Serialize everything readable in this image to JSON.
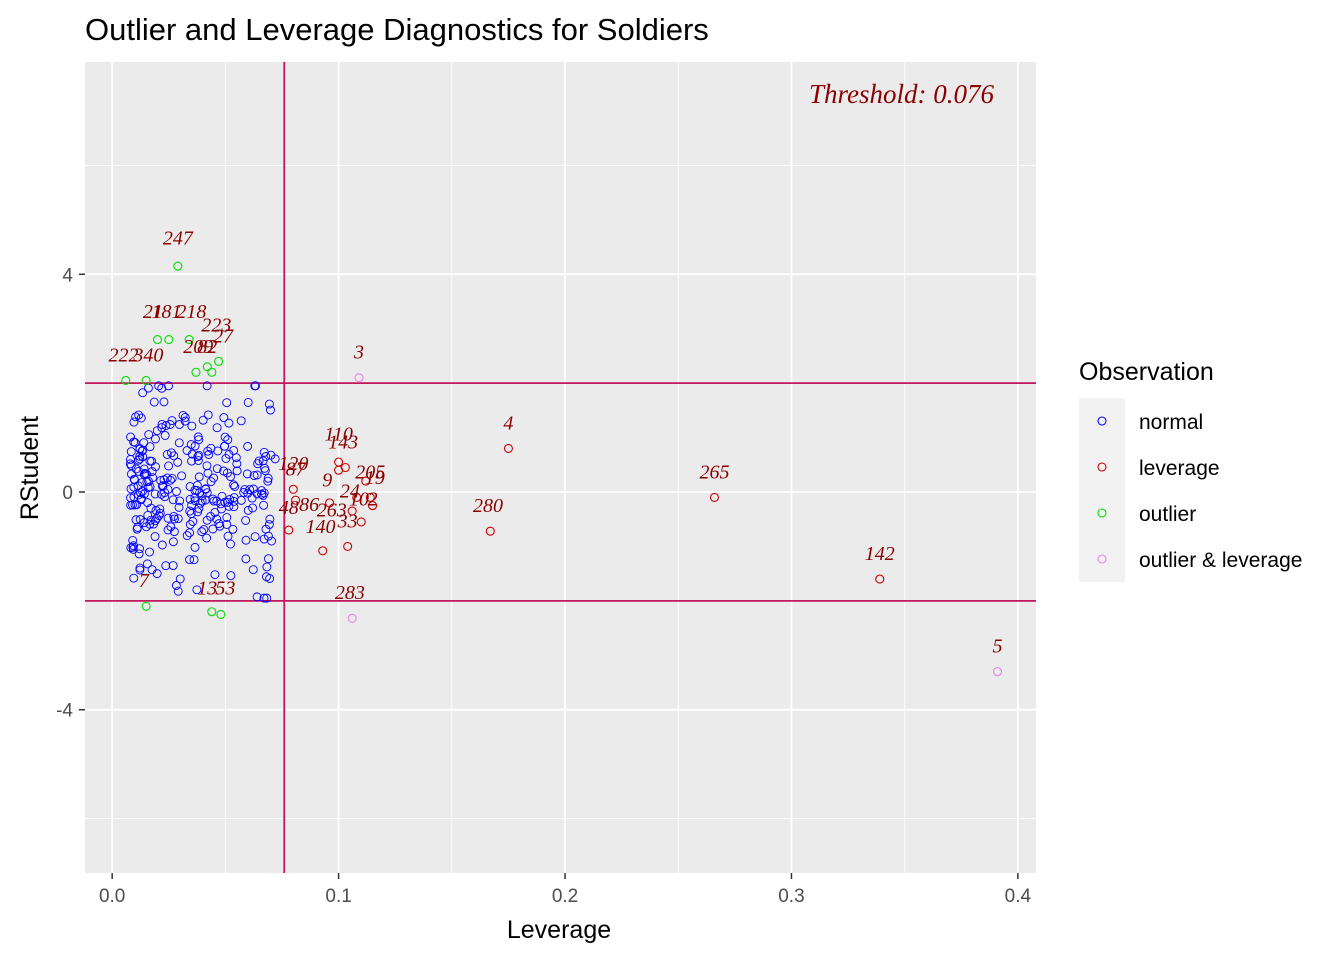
{
  "chart_data": {
    "type": "scatter",
    "title": "Outlier and Leverage Diagnostics for Soldiers",
    "xlabel": "Leverage",
    "ylabel": "RStudent",
    "xlim": [
      -0.012,
      0.408
    ],
    "ylim": [
      -7.0,
      7.9
    ],
    "x_ticks": [
      0.0,
      0.1,
      0.2,
      0.3,
      0.4
    ],
    "x_tick_labels": [
      "0.0",
      "0.1",
      "0.2",
      "0.3",
      "0.4"
    ],
    "y_ticks": [
      -4,
      0,
      4
    ],
    "y_tick_labels": [
      "-4",
      "0",
      "4"
    ],
    "x_minor": [
      0.05,
      0.15,
      0.25,
      0.35
    ],
    "y_minor": [
      -6,
      -2,
      2,
      6
    ],
    "grid": true,
    "threshold_text": "Threshold: 0.076",
    "threshold_leverage": 0.076,
    "rstudent_bounds": [
      -2,
      2
    ],
    "legend": {
      "title": "Observation",
      "position": "right",
      "entries": [
        {
          "label": "normal",
          "color": "#0000ff"
        },
        {
          "label": "leverage",
          "color": "#cc0000"
        },
        {
          "label": "outlier",
          "color": "#00dd00"
        },
        {
          "label": "outlier & leverage",
          "color": "#ee82ee"
        }
      ]
    },
    "label_color": "#8b0000",
    "line_color": "#c2185b",
    "panel_color": "#ebebeb",
    "series": [
      {
        "name": "leverage",
        "points": [
          [
            0.175,
            0.8,
            "4"
          ],
          [
            0.266,
            -0.1,
            "265"
          ],
          [
            0.167,
            -0.72,
            "280"
          ],
          [
            0.339,
            -1.6,
            "142"
          ],
          [
            0.08,
            0.05,
            "120"
          ],
          [
            0.078,
            -0.7,
            "48"
          ],
          [
            0.081,
            -0.15,
            "87"
          ],
          [
            0.093,
            -1.08,
            "140"
          ],
          [
            0.096,
            -0.2,
            "86"
          ],
          [
            0.1,
            0.55,
            "110"
          ],
          [
            0.1,
            0.4,
            "9"
          ],
          [
            0.103,
            0.45,
            "143"
          ],
          [
            0.104,
            -1.0,
            "33"
          ],
          [
            0.106,
            -0.35,
            "263"
          ],
          [
            0.108,
            -0.1,
            "24"
          ],
          [
            0.11,
            -0.55,
            "10"
          ],
          [
            0.112,
            0.2,
            "205"
          ],
          [
            0.114,
            -0.1,
            "19"
          ],
          [
            0.115,
            -0.25,
            "2"
          ]
        ]
      },
      {
        "name": "outlier",
        "points": [
          [
            0.029,
            4.15,
            "247"
          ],
          [
            0.02,
            2.8,
            "21"
          ],
          [
            0.025,
            2.8,
            "181"
          ],
          [
            0.034,
            2.8,
            "218"
          ],
          [
            0.037,
            2.2,
            "223"
          ],
          [
            0.042,
            2.3,
            "209"
          ],
          [
            0.044,
            2.2,
            "82"
          ],
          [
            0.047,
            2.4,
            "27"
          ],
          [
            0.006,
            2.05,
            "222"
          ],
          [
            0.015,
            2.05,
            "340"
          ],
          [
            0.015,
            -2.1,
            "7"
          ],
          [
            0.044,
            -2.2,
            "13"
          ],
          [
            0.048,
            -2.25,
            "53"
          ]
        ]
      },
      {
        "name": "outlier & leverage",
        "points": [
          [
            0.109,
            2.1,
            "3"
          ],
          [
            0.106,
            -2.32,
            "283"
          ],
          [
            0.391,
            -3.3,
            "5"
          ]
        ]
      }
    ],
    "labels": [
      {
        "text": "247",
        "x": 0.029,
        "y": 4.55
      },
      {
        "text": "21",
        "x": 0.018,
        "y": 3.2
      },
      {
        "text": "181",
        "x": 0.024,
        "y": 3.2
      },
      {
        "text": "218",
        "x": 0.035,
        "y": 3.2
      },
      {
        "text": "223",
        "x": 0.046,
        "y": 2.95
      },
      {
        "text": "209",
        "x": 0.038,
        "y": 2.55
      },
      {
        "text": "82",
        "x": 0.042,
        "y": 2.55
      },
      {
        "text": "27",
        "x": 0.049,
        "y": 2.75
      },
      {
        "text": "222",
        "x": 0.005,
        "y": 2.4
      },
      {
        "text": "340",
        "x": 0.016,
        "y": 2.4
      },
      {
        "text": "3",
        "x": 0.109,
        "y": 2.45
      },
      {
        "text": "4",
        "x": 0.175,
        "y": 1.15
      },
      {
        "text": "110",
        "x": 0.1,
        "y": 0.95
      },
      {
        "text": "143",
        "x": 0.102,
        "y": 0.8
      },
      {
        "text": "120",
        "x": 0.08,
        "y": 0.4
      },
      {
        "text": "87",
        "x": 0.081,
        "y": 0.3
      },
      {
        "text": "9",
        "x": 0.095,
        "y": 0.1
      },
      {
        "text": "205",
        "x": 0.114,
        "y": 0.25
      },
      {
        "text": "19",
        "x": 0.116,
        "y": 0.15
      },
      {
        "text": "24",
        "x": 0.105,
        "y": -0.1
      },
      {
        "text": "10",
        "x": 0.109,
        "y": -0.25
      },
      {
        "text": "2",
        "x": 0.115,
        "y": -0.25
      },
      {
        "text": "48",
        "x": 0.078,
        "y": -0.4
      },
      {
        "text": "86",
        "x": 0.087,
        "y": -0.35
      },
      {
        "text": "263",
        "x": 0.097,
        "y": -0.45
      },
      {
        "text": "140",
        "x": 0.092,
        "y": -0.75
      },
      {
        "text": "33",
        "x": 0.104,
        "y": -0.65
      },
      {
        "text": "265",
        "x": 0.266,
        "y": 0.25
      },
      {
        "text": "280",
        "x": 0.166,
        "y": -0.37
      },
      {
        "text": "142",
        "x": 0.339,
        "y": -1.25
      },
      {
        "text": "7",
        "x": 0.014,
        "y": -1.75
      },
      {
        "text": "13",
        "x": 0.042,
        "y": -1.88
      },
      {
        "text": "53",
        "x": 0.05,
        "y": -1.88
      },
      {
        "text": "283",
        "x": 0.105,
        "y": -1.97
      },
      {
        "text": "5",
        "x": 0.391,
        "y": -2.95
      }
    ]
  }
}
